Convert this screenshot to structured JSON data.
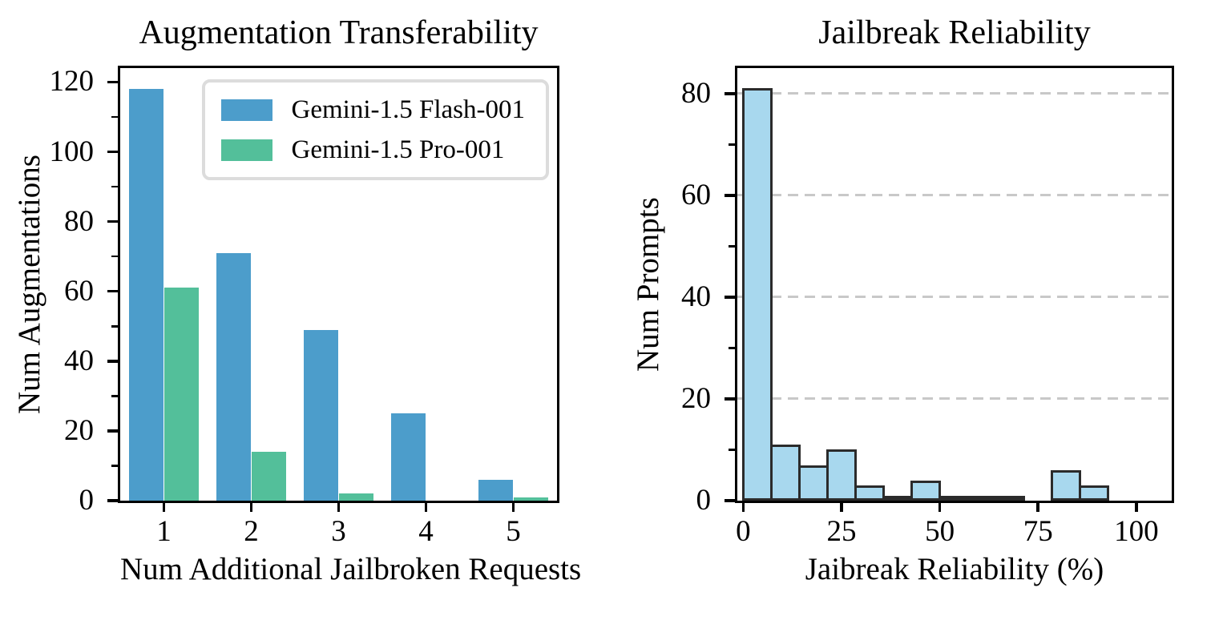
{
  "figure": {
    "background": "#ffffff"
  },
  "chart_data": [
    {
      "type": "bar",
      "title": "Augmentation Transferability",
      "xlabel": "Num Additional Jailbroken Requests",
      "ylabel": "Num Augmentations",
      "categories": [
        "1",
        "2",
        "3",
        "4",
        "5"
      ],
      "series": [
        {
          "name": "Gemini-1.5 Flash-001",
          "color": "#4c9dcb",
          "values": [
            118,
            71,
            49,
            25,
            6
          ]
        },
        {
          "name": "Gemini-1.5 Pro-001",
          "color": "#53bf9a",
          "values": [
            61,
            14,
            2,
            0,
            1
          ]
        }
      ],
      "ylim": [
        0,
        124
      ],
      "yticks": [
        0,
        20,
        40,
        60,
        80,
        100,
        120
      ],
      "legend_position": "upper right",
      "grid": false
    },
    {
      "type": "histogram",
      "title": "Jailbreak Reliability",
      "xlabel": "Jaibreak Reliability (%)",
      "ylabel": "Num Prompts",
      "bin_start": 0,
      "bin_width": 7.143,
      "counts": [
        81,
        11,
        7,
        10,
        3,
        1,
        4,
        1,
        1,
        1,
        0,
        6,
        3,
        0
      ],
      "bar_color": "#a8d8ee",
      "bar_edge_color": "#2b2b2b",
      "xlim": [
        -1.5,
        109
      ],
      "ylim": [
        0,
        85
      ],
      "xticks": [
        0,
        25,
        50,
        75,
        100
      ],
      "yticks": [
        0,
        20,
        40,
        60,
        80
      ],
      "grid": "y-dashed",
      "grid_color": "#c8c8c8"
    }
  ]
}
